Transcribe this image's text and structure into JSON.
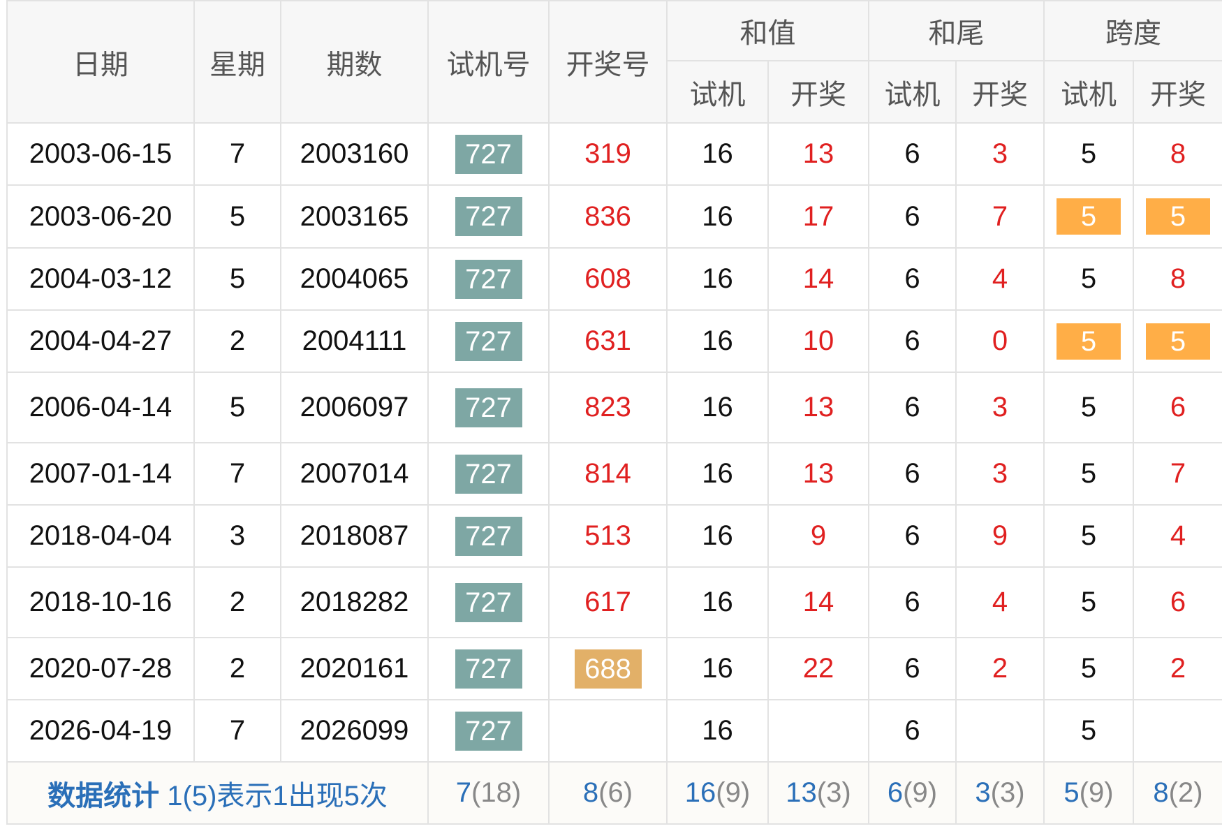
{
  "header": {
    "date": "日期",
    "weekday": "星期",
    "issue": "期数",
    "trial": "试机号",
    "draw": "开奖号",
    "sum": "和值",
    "tail": "和尾",
    "span": "跨度",
    "sub_trial": "试机",
    "sub_draw": "开奖"
  },
  "rows": [
    {
      "date": "2003-06-15",
      "weekday": "7",
      "issue": "2003160",
      "trial": "727",
      "draw": "319",
      "sum_t": "16",
      "sum_d": "13",
      "tail_t": "6",
      "tail_d": "3",
      "span_t": "5",
      "span_d": "8"
    },
    {
      "date": "2003-06-20",
      "weekday": "5",
      "issue": "2003165",
      "trial": "727",
      "draw": "836",
      "sum_t": "16",
      "sum_d": "17",
      "tail_t": "6",
      "tail_d": "7",
      "span_t": "5",
      "span_d": "5",
      "span_hl": true
    },
    {
      "date": "2004-03-12",
      "weekday": "5",
      "issue": "2004065",
      "trial": "727",
      "draw": "608",
      "sum_t": "16",
      "sum_d": "14",
      "tail_t": "6",
      "tail_d": "4",
      "span_t": "5",
      "span_d": "8"
    },
    {
      "date": "2004-04-27",
      "weekday": "2",
      "issue": "2004111",
      "trial": "727",
      "draw": "631",
      "sum_t": "16",
      "sum_d": "10",
      "tail_t": "6",
      "tail_d": "0",
      "span_t": "5",
      "span_d": "5",
      "span_hl": true
    },
    {
      "date": "2006-04-14",
      "weekday": "5",
      "issue": "2006097",
      "trial": "727",
      "draw": "823",
      "sum_t": "16",
      "sum_d": "13",
      "tail_t": "6",
      "tail_d": "3",
      "span_t": "5",
      "span_d": "6"
    },
    {
      "date": "2007-01-14",
      "weekday": "7",
      "issue": "2007014",
      "trial": "727",
      "draw": "814",
      "sum_t": "16",
      "sum_d": "13",
      "tail_t": "6",
      "tail_d": "3",
      "span_t": "5",
      "span_d": "7"
    },
    {
      "date": "2018-04-04",
      "weekday": "3",
      "issue": "2018087",
      "trial": "727",
      "draw": "513",
      "sum_t": "16",
      "sum_d": "9",
      "tail_t": "6",
      "tail_d": "9",
      "span_t": "5",
      "span_d": "4"
    },
    {
      "date": "2018-10-16",
      "weekday": "2",
      "issue": "2018282",
      "trial": "727",
      "draw": "617",
      "sum_t": "16",
      "sum_d": "14",
      "tail_t": "6",
      "tail_d": "4",
      "span_t": "5",
      "span_d": "6"
    },
    {
      "date": "2020-07-28",
      "weekday": "2",
      "issue": "2020161",
      "trial": "727",
      "draw": "688",
      "draw_hl": true,
      "sum_t": "16",
      "sum_d": "22",
      "tail_t": "6",
      "tail_d": "2",
      "span_t": "5",
      "span_d": "2"
    },
    {
      "date": "2026-04-19",
      "weekday": "7",
      "issue": "2026099",
      "trial": "727",
      "draw": "",
      "sum_t": "16",
      "sum_d": "",
      "tail_t": "6",
      "tail_d": "",
      "span_t": "5",
      "span_d": ""
    }
  ],
  "stats": {
    "title": "数据统计",
    "legend": "1(5)表示1出现5次",
    "cells": [
      {
        "v": "7",
        "c": "(18)"
      },
      {
        "v": "8",
        "c": "(6)"
      },
      {
        "v": "16",
        "c": "(9)"
      },
      {
        "v": "13",
        "c": "(3)"
      },
      {
        "v": "6",
        "c": "(9)"
      },
      {
        "v": "3",
        "c": "(3)"
      },
      {
        "v": "5",
        "c": "(9)"
      },
      {
        "v": "8",
        "c": "(2)"
      }
    ]
  },
  "colors": {
    "trial_badge": "#7ea7a4",
    "span_highlight": "#ffae47",
    "draw_highlight": "#e2b068",
    "draw_text": "#e02020",
    "stats_text": "#2a6fb8"
  }
}
